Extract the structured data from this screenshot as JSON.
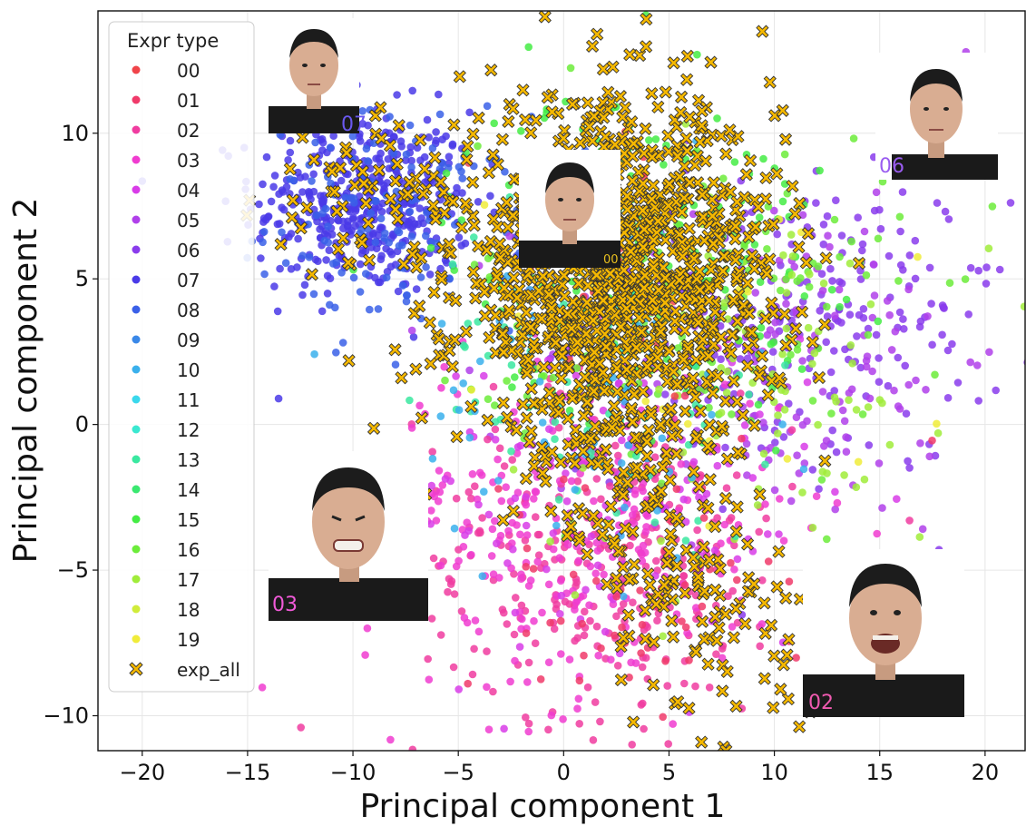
{
  "chart_data": {
    "type": "scatter",
    "title": "",
    "xlabel": "Principal component 1",
    "ylabel": "Principal component 2",
    "xlim": [
      -22.1,
      21.9
    ],
    "ylim": [
      -11.2,
      14.2
    ],
    "xticks": [
      -20,
      -15,
      -10,
      -5,
      0,
      5,
      10,
      15,
      20
    ],
    "yticks": [
      -10,
      -5,
      0,
      5,
      10
    ],
    "grid": true,
    "legend": {
      "title": "Expr type",
      "position": "top-left",
      "entries": [
        {
          "label": "00",
          "color": "#f0444a"
        },
        {
          "label": "01",
          "color": "#f03a6a"
        },
        {
          "label": "02",
          "color": "#f03ca0"
        },
        {
          "label": "03",
          "color": "#f03cd0"
        },
        {
          "label": "04",
          "color": "#d83ce8"
        },
        {
          "label": "05",
          "color": "#b040ea"
        },
        {
          "label": "06",
          "color": "#8a3cec"
        },
        {
          "label": "07",
          "color": "#4a3ae8"
        },
        {
          "label": "08",
          "color": "#3a60e8"
        },
        {
          "label": "09",
          "color": "#3a88e8"
        },
        {
          "label": "10",
          "color": "#3ab0ec"
        },
        {
          "label": "11",
          "color": "#3ad8ec"
        },
        {
          "label": "12",
          "color": "#3ae8d0"
        },
        {
          "label": "13",
          "color": "#3ae8a0"
        },
        {
          "label": "14",
          "color": "#3ae870"
        },
        {
          "label": "15",
          "color": "#44ec44"
        },
        {
          "label": "16",
          "color": "#6cec3a"
        },
        {
          "label": "17",
          "color": "#a0ec3a"
        },
        {
          "label": "18",
          "color": "#d0ec3a"
        },
        {
          "label": "19",
          "color": "#f0ec3a"
        },
        {
          "label": "exp_all",
          "color": "#f5b800",
          "marker": "x"
        }
      ]
    },
    "series": [
      {
        "name": "07",
        "center": [
          -9.5,
          7.6
        ],
        "spread": [
          2.6,
          1.6
        ],
        "n": 420,
        "color": "#4a3ae8"
      },
      {
        "name": "08",
        "center": [
          -8.0,
          7.0
        ],
        "spread": [
          3.0,
          1.8
        ],
        "n": 140,
        "color": "#3a60e8"
      },
      {
        "name": "06",
        "center": [
          11.0,
          3.5
        ],
        "spread": [
          5.0,
          2.6
        ],
        "n": 260,
        "color": "#8a3cec"
      },
      {
        "name": "05",
        "center": [
          10.0,
          2.5
        ],
        "spread": [
          5.5,
          3.0
        ],
        "n": 160,
        "color": "#b040ea"
      },
      {
        "name": "02",
        "center": [
          2.0,
          -4.5
        ],
        "spread": [
          4.5,
          2.8
        ],
        "n": 300,
        "color": "#f03ca0"
      },
      {
        "name": "03",
        "center": [
          0.5,
          -3.5
        ],
        "spread": [
          5.0,
          3.0
        ],
        "n": 260,
        "color": "#f03cd0"
      },
      {
        "name": "04",
        "center": [
          3.0,
          -2.5
        ],
        "spread": [
          5.0,
          3.0
        ],
        "n": 120,
        "color": "#d83ce8"
      },
      {
        "name": "15",
        "center": [
          3.5,
          6.0
        ],
        "spread": [
          4.5,
          2.8
        ],
        "n": 200,
        "color": "#44ec44"
      },
      {
        "name": "16",
        "center": [
          6.0,
          4.0
        ],
        "spread": [
          5.0,
          3.0
        ],
        "n": 160,
        "color": "#6cec3a"
      },
      {
        "name": "17",
        "center": [
          8.0,
          2.0
        ],
        "spread": [
          5.0,
          3.5
        ],
        "n": 120,
        "color": "#a0ec3a"
      },
      {
        "name": "13",
        "center": [
          2.0,
          2.0
        ],
        "spread": [
          4.0,
          3.0
        ],
        "n": 90,
        "color": "#3ae8a0"
      },
      {
        "name": "10",
        "center": [
          1.0,
          1.0
        ],
        "spread": [
          4.0,
          3.0
        ],
        "n": 80,
        "color": "#3ab0ec"
      },
      {
        "name": "01",
        "center": [
          3.0,
          -6.0
        ],
        "spread": [
          4.0,
          2.5
        ],
        "n": 60,
        "color": "#f03a6a"
      },
      {
        "name": "00",
        "center": [
          2.0,
          5.0
        ],
        "spread": [
          3.0,
          2.5
        ],
        "n": 40,
        "color": "#f0444a"
      },
      {
        "name": "19",
        "center": [
          5.0,
          4.0
        ],
        "spread": [
          5.0,
          3.0
        ],
        "n": 40,
        "color": "#f0ec3a"
      }
    ],
    "exp_all": {
      "name": "exp_all",
      "center": [
        2.5,
        5.0
      ],
      "spread": [
        3.8,
        3.0
      ],
      "n": 1200,
      "tail_n": 160,
      "color": "#f5b800"
    }
  },
  "face_panels": [
    {
      "label": "07",
      "depicts": "face with side-glance expression",
      "label_color": "#6a58f0"
    },
    {
      "label": "06",
      "depicts": "face with side-glance expression",
      "label_color": "#9a5cf0"
    },
    {
      "label": "00",
      "depicts": "neutral face",
      "label_color": "#e8c020"
    },
    {
      "label": "03",
      "depicts": "face grimacing",
      "label_color": "#f05ad8"
    },
    {
      "label": "02",
      "depicts": "face with open-mouth grimace",
      "label_color": "#f05ab0"
    }
  ]
}
